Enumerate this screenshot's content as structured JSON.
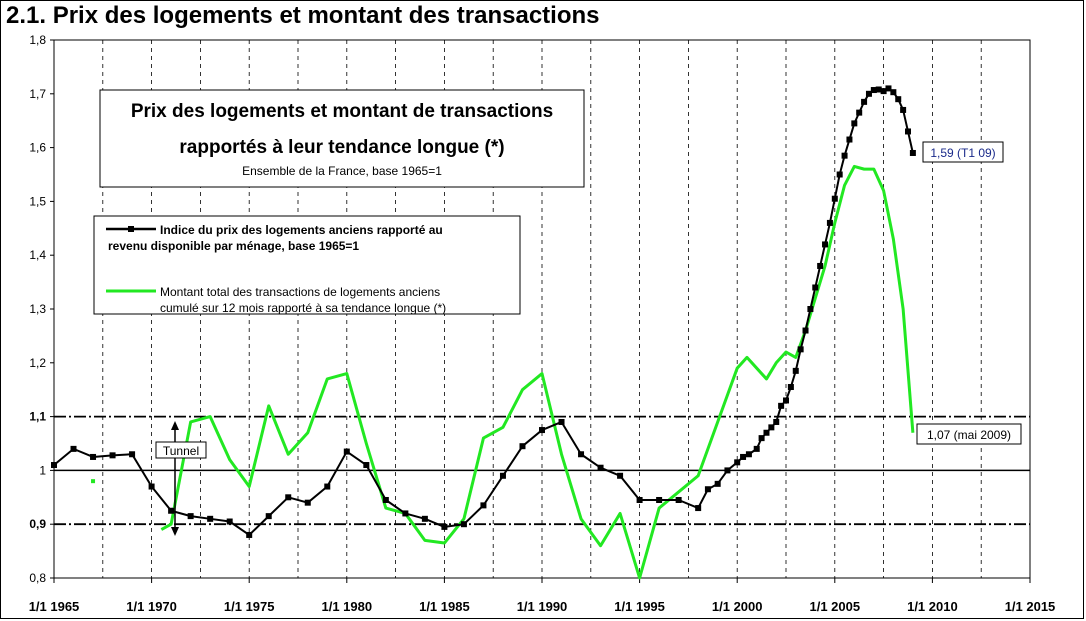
{
  "chart_title": "2.1. Prix des logements et montant des transactions",
  "colors": {
    "price": "#000000",
    "transactions": "#22e822",
    "background": "#ffffff"
  },
  "chart_data": {
    "type": "line",
    "title": "Prix des logements et montant de transactions",
    "subtitle_line2": "rapportés à leur tendance longue (*)",
    "subtitle_line3": "Ensemble de la France, base 1965=1",
    "ylim": [
      0.8,
      1.8
    ],
    "xlim": [
      1965,
      2015
    ],
    "y_ticks": [
      "0,8",
      "0,9",
      "1",
      "1,1",
      "1,2",
      "1,3",
      "1,4",
      "1,5",
      "1,6",
      "1,7",
      "1,8"
    ],
    "x_ticks": [
      "1/1 1965",
      "1/1 1970",
      "1/1 1975",
      "1/1 1980",
      "1/1 1985",
      "1/1 1990",
      "1/1 1995",
      "1/1 2000",
      "1/1 2005",
      "1/1 2010",
      "1/1 2015"
    ],
    "grid": "vertical dashed",
    "legend_placement": "upper-left",
    "reference_lines": [
      {
        "y": 1.1,
        "style": "dash-dot"
      },
      {
        "y": 1.0,
        "style": "solid"
      },
      {
        "y": 0.9,
        "style": "dash-dot"
      }
    ],
    "tunnel_label": "Tunnel",
    "series": [
      {
        "name": "Indice du prix des logements anciens rapporté au revenu disponible par ménage, base 1965=1",
        "legend_line1": "Indice du prix des logements anciens rapporté au",
        "legend_line2": "revenu disponible par ménage, base 1965=1",
        "color": "#000000",
        "x": [
          1965,
          1966,
          1967,
          1968,
          1969,
          1970,
          1971,
          1972,
          1973,
          1974,
          1975,
          1976,
          1977,
          1978,
          1979,
          1980,
          1981,
          1982,
          1983,
          1984,
          1985,
          1986,
          1987,
          1988,
          1989,
          1990,
          1991,
          1992,
          1993,
          1994,
          1995,
          1996,
          1997,
          1998,
          1998.5,
          1999,
          1999.5,
          2000,
          2000.3,
          2000.6,
          2001,
          2001.25,
          2001.5,
          2001.75,
          2002,
          2002.25,
          2002.5,
          2002.75,
          2003,
          2003.25,
          2003.5,
          2003.75,
          2004,
          2004.25,
          2004.5,
          2004.75,
          2005,
          2005.25,
          2005.5,
          2005.75,
          2006,
          2006.25,
          2006.5,
          2006.75,
          2007,
          2007.25,
          2007.5,
          2007.75,
          2008,
          2008.25,
          2008.5,
          2008.75,
          2009
        ],
        "values": [
          1.01,
          1.04,
          1.025,
          1.028,
          1.03,
          0.97,
          0.925,
          0.915,
          0.91,
          0.905,
          0.88,
          0.915,
          0.95,
          0.94,
          0.97,
          1.035,
          1.01,
          0.945,
          0.92,
          0.91,
          0.895,
          0.9,
          0.935,
          0.99,
          1.045,
          1.075,
          1.09,
          1.03,
          1.005,
          0.99,
          0.945,
          0.945,
          0.945,
          0.93,
          0.965,
          0.975,
          1.0,
          1.015,
          1.025,
          1.03,
          1.04,
          1.06,
          1.07,
          1.08,
          1.09,
          1.12,
          1.13,
          1.155,
          1.185,
          1.225,
          1.26,
          1.3,
          1.34,
          1.38,
          1.42,
          1.46,
          1.505,
          1.55,
          1.585,
          1.615,
          1.645,
          1.665,
          1.685,
          1.7,
          1.707,
          1.708,
          1.705,
          1.71,
          1.703,
          1.69,
          1.67,
          1.63,
          1.59
        ]
      },
      {
        "name": "Montant total des transactions de logements anciens cumulé sur 12 mois rapporté à sa tendance longue (*)",
        "legend_line1": "Montant total des transactions de logements anciens",
        "legend_line2": "cumulé sur 12 mois rapporté à sa tendance longue (*)",
        "color": "#22e822",
        "isolated_point": {
          "x": 1967,
          "y": 0.98
        },
        "x": [
          1970.5,
          1971,
          1972,
          1973,
          1974,
          1975,
          1976,
          1977,
          1978,
          1979,
          1980,
          1981,
          1982,
          1983,
          1984,
          1985,
          1986,
          1987,
          1988,
          1989,
          1990,
          1991,
          1992,
          1993,
          1994,
          1995,
          1996,
          1997,
          1998,
          1999,
          2000,
          2000.5,
          2001,
          2001.5,
          2002,
          2002.5,
          2003,
          2003.5,
          2004,
          2004.5,
          2005,
          2005.5,
          2006,
          2006.5,
          2007,
          2007.5,
          2008,
          2008.5,
          2009
        ],
        "values": [
          0.89,
          0.9,
          1.09,
          1.1,
          1.02,
          0.97,
          1.12,
          1.03,
          1.07,
          1.17,
          1.18,
          1.05,
          0.93,
          0.92,
          0.87,
          0.865,
          0.91,
          1.06,
          1.08,
          1.15,
          1.18,
          1.03,
          0.91,
          0.86,
          0.92,
          0.8,
          0.93,
          0.96,
          0.99,
          1.09,
          1.19,
          1.21,
          1.19,
          1.17,
          1.2,
          1.22,
          1.21,
          1.26,
          1.32,
          1.38,
          1.46,
          1.53,
          1.565,
          1.56,
          1.56,
          1.52,
          1.43,
          1.3,
          1.07
        ]
      }
    ],
    "annotations": [
      "1,59 (T1 09)",
      "1,07 (mai 2009)"
    ]
  }
}
